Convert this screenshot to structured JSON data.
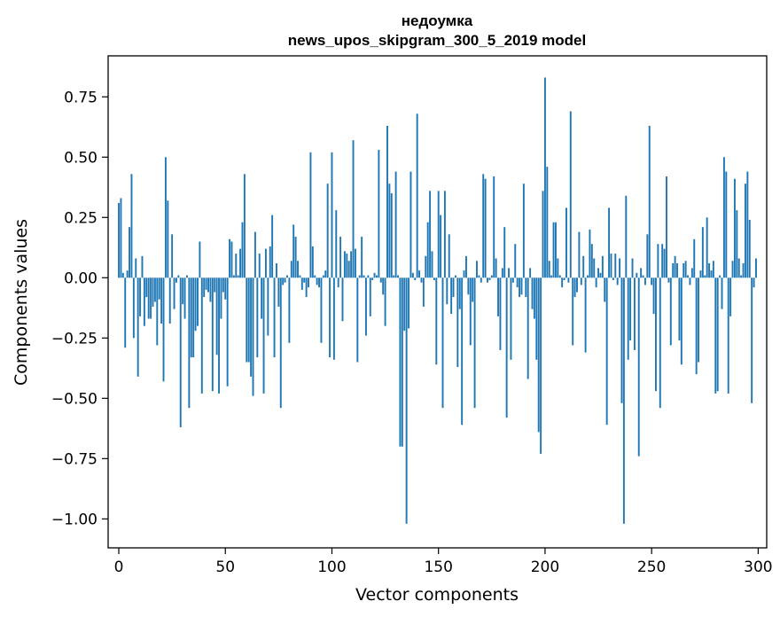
{
  "chart_data": {
    "type": "bar",
    "title_line1": "недоумка",
    "title_line2": "news_upos_skipgram_300_5_2019 model",
    "xlabel": "Vector components",
    "ylabel": "Components values",
    "xlim": [
      -5,
      304
    ],
    "ylim": [
      -1.12,
      0.92
    ],
    "xticks": [
      0,
      50,
      100,
      150,
      200,
      250,
      300
    ],
    "xtick_labels": [
      "0",
      "50",
      "100",
      "150",
      "200",
      "250",
      "300"
    ],
    "yticks": [
      0.75,
      0.5,
      0.25,
      0.0,
      -0.25,
      -0.5,
      -0.75,
      -1.0
    ],
    "ytick_labels": [
      "0.75",
      "0.50",
      "0.25",
      "0.00",
      "−0.25",
      "−0.50",
      "−0.75",
      "−1.00"
    ],
    "bar_color": "#1f77b4",
    "values": [
      0.31,
      0.33,
      0.02,
      -0.29,
      0.03,
      0.21,
      0.43,
      -0.25,
      0.08,
      -0.41,
      -0.16,
      0.09,
      -0.2,
      -0.08,
      -0.17,
      -0.17,
      -0.12,
      -0.1,
      -0.28,
      -0.09,
      -0.19,
      -0.43,
      0.5,
      0.32,
      -0.19,
      0.18,
      -0.13,
      -0.02,
      0.01,
      -0.62,
      -0.11,
      -0.17,
      0.01,
      -0.54,
      -0.33,
      -0.33,
      -0.22,
      -0.2,
      0.15,
      -0.48,
      -0.08,
      -0.05,
      -0.06,
      -0.1,
      -0.47,
      -0.06,
      -0.32,
      -0.48,
      -0.17,
      -0.06,
      -0.09,
      -0.45,
      0.16,
      0.15,
      0.01,
      0.1,
      0.01,
      0.12,
      0.23,
      0.43,
      -0.35,
      -0.35,
      -0.41,
      -0.49,
      0.19,
      -0.33,
      0.1,
      -0.17,
      -0.48,
      0.12,
      -0.24,
      0.13,
      0.26,
      -0.33,
      0.06,
      -0.12,
      -0.54,
      -0.03,
      -0.02,
      0.01,
      -0.27,
      0.07,
      0.22,
      0.17,
      0.07,
      0.01,
      -0.05,
      -0.02,
      -0.08,
      -0.04,
      0.52,
      0.13,
      0.01,
      -0.03,
      -0.04,
      -0.27,
      0.01,
      0.03,
      0.39,
      -0.33,
      0.52,
      -0.34,
      0.28,
      -0.04,
      0.17,
      -0.18,
      0.11,
      0.1,
      0.07,
      0.11,
      0.57,
      0.12,
      -0.35,
      0.01,
      0.17,
      0.01,
      -0.24,
      0.01,
      -0.16,
      -0.01,
      0.02,
      0.01,
      0.53,
      -0.02,
      -0.07,
      -0.2,
      0.63,
      0.39,
      0.35,
      0.01,
      0.44,
      0.01,
      -0.7,
      -0.7,
      -0.22,
      -1.02,
      -0.21,
      0.44,
      0.02,
      -0.01,
      0.68,
      0.03,
      -0.02,
      -0.12,
      0.09,
      0.23,
      0.36,
      0.11,
      -0.01,
      -0.36,
      0.36,
      0.26,
      -0.54,
      0.36,
      -0.11,
      0.18,
      -0.15,
      -0.08,
      0.01,
      -0.37,
      -0.13,
      -0.61,
      0.03,
      0.09,
      -0.07,
      -0.28,
      -0.1,
      -0.54,
      0.07,
      0.01,
      -0.02,
      0.43,
      0.41,
      -0.02,
      -0.01,
      0.01,
      0.42,
      0.08,
      -0.16,
      -0.3,
      0.04,
      0.21,
      -0.58,
      0.04,
      -0.34,
      -0.02,
      0.14,
      -0.04,
      -0.08,
      -0.07,
      0.39,
      -0.08,
      -0.42,
      0.04,
      -0.13,
      -0.17,
      -0.34,
      -0.64,
      -0.73,
      0.36,
      0.83,
      0.46,
      0.07,
      0.01,
      0.23,
      0.23,
      0.08,
      0.01,
      -0.04,
      -0.01,
      0.29,
      -0.02,
      0.69,
      -0.28,
      -0.08,
      -0.06,
      0.19,
      -0.03,
      0.09,
      -0.31,
      0.01,
      0.2,
      0.14,
      0.08,
      -0.04,
      0.04,
      0.02,
      0.09,
      -0.1,
      -0.61,
      0.29,
      0.1,
      -0.01,
      0.1,
      -0.03,
      0.08,
      -0.52,
      -1.02,
      0.34,
      -0.34,
      -0.26,
      0.08,
      -0.3,
      0.02,
      -0.74,
      0.04,
      0.01,
      -0.03,
      0.18,
      0.63,
      -0.03,
      -0.15,
      -0.47,
      0.14,
      -0.54,
      0.14,
      0.12,
      0.42,
      -0.02,
      -0.28,
      0.06,
      0.09,
      0.06,
      -0.26,
      -0.36,
      0.06,
      0.07,
      0.01,
      -0.03,
      0.04,
      0.16,
      -0.4,
      -0.35,
      0.03,
      0.21,
      0.01,
      0.25,
      0.06,
      0.03,
      0.07,
      -0.48,
      -0.47,
      0.01,
      -0.13,
      0.5,
      0.44,
      -0.48,
      -0.16,
      0.07,
      0.41,
      0.28,
      0.08,
      0.01,
      0.06,
      0.39,
      0.44,
      0.24,
      -0.52,
      -0.04,
      0.08
    ]
  }
}
